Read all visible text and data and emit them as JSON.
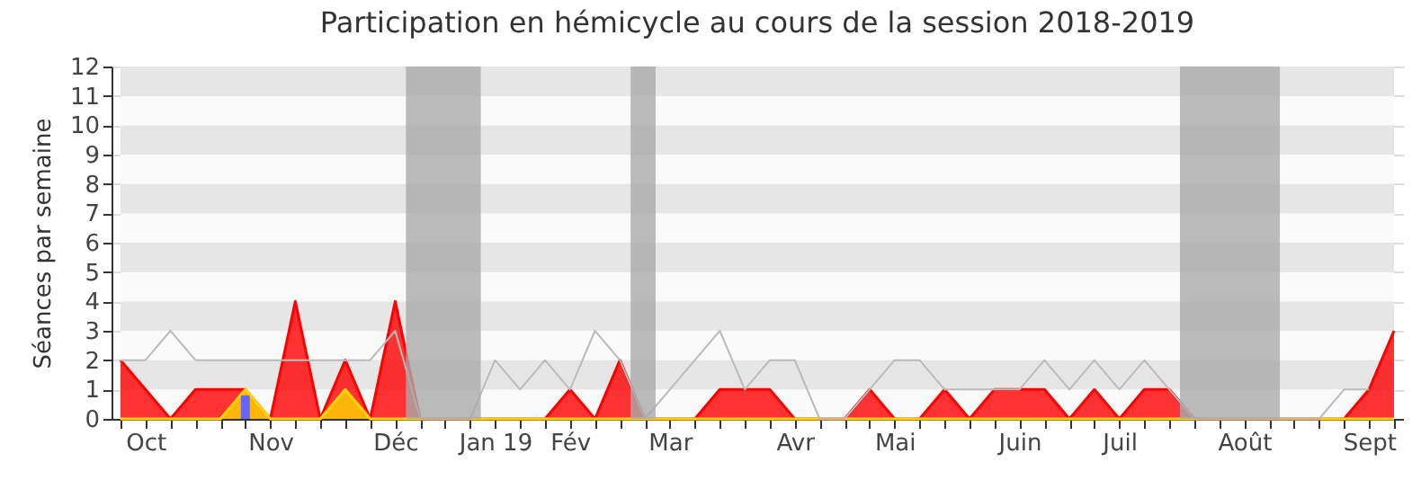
{
  "chart_data": {
    "type": "area",
    "title": "Participation en hémicycle au cours de la session 2018-2019",
    "ylabel": "Séances par semaine",
    "x": [
      "2018-09-30",
      "2018-10-07",
      "2018-10-14",
      "2018-10-21",
      "2018-10-28",
      "2018-11-04",
      "2018-11-11",
      "2018-11-18",
      "2018-11-25",
      "2018-12-02",
      "2018-12-09",
      "2018-12-16",
      "2018-12-23",
      "2018-12-30",
      "2019-01-06",
      "2019-01-13",
      "2019-01-20",
      "2019-01-27",
      "2019-02-03",
      "2019-02-10",
      "2019-02-17",
      "2019-02-24",
      "2019-03-03",
      "2019-03-10",
      "2019-03-17",
      "2019-03-24",
      "2019-03-31",
      "2019-04-07",
      "2019-04-14",
      "2019-04-21",
      "2019-04-28",
      "2019-05-05",
      "2019-05-12",
      "2019-05-19",
      "2019-05-26",
      "2019-06-02",
      "2019-06-09",
      "2019-06-16",
      "2019-06-23",
      "2019-06-30",
      "2019-07-07",
      "2019-07-14",
      "2019-07-21",
      "2019-07-28",
      "2019-08-04",
      "2019-08-11",
      "2019-08-18",
      "2019-08-25",
      "2019-09-01",
      "2019-09-08",
      "2019-09-15",
      "2019-09-22"
    ],
    "series": [
      {
        "color": "#ff0000",
        "values": [
          2,
          1,
          0,
          1,
          1,
          1,
          0,
          4,
          0,
          2,
          0,
          4,
          0,
          0,
          0,
          0,
          0,
          0,
          1,
          0,
          2,
          0,
          0,
          0,
          1,
          1,
          1,
          0,
          0,
          0,
          1,
          0,
          0,
          1,
          0,
          1,
          1,
          1,
          0,
          1,
          0,
          1,
          1,
          0,
          0,
          0,
          0,
          0,
          0,
          0,
          1,
          3
        ]
      },
      {
        "color": "#ffd700",
        "values": [
          0,
          0,
          0,
          0,
          0,
          1,
          0,
          0,
          0,
          1,
          0,
          0,
          0,
          0,
          0,
          0,
          0,
          0,
          0,
          0,
          0,
          0,
          0,
          0,
          0,
          0,
          0,
          0,
          0,
          0,
          0,
          0,
          0,
          0,
          0,
          0,
          0,
          0,
          0,
          0,
          0,
          0,
          0,
          0,
          0,
          0,
          0,
          0,
          0,
          0,
          0,
          0
        ]
      },
      {
        "type": "bar",
        "color": "#6666ff",
        "values": [
          null,
          null,
          null,
          null,
          null,
          0.8,
          null,
          null,
          null,
          null,
          null,
          null,
          null,
          null,
          null,
          null,
          null,
          null,
          null,
          null,
          null,
          null,
          null,
          null,
          null,
          null,
          null,
          null,
          null,
          null,
          null,
          null,
          null,
          null,
          null,
          null,
          null,
          null,
          null,
          null,
          null,
          null,
          null,
          null,
          null,
          null,
          null,
          null,
          null,
          null,
          null,
          null
        ]
      },
      {
        "type": "line",
        "color": "#bbbbbb",
        "values": [
          2,
          2,
          3,
          2,
          2,
          2,
          2,
          2,
          2,
          2,
          2,
          3,
          0,
          0,
          0,
          2,
          1,
          2,
          1,
          3,
          2,
          0,
          1,
          2,
          3,
          1,
          2,
          2,
          0,
          0,
          1,
          2,
          2,
          1,
          1,
          1,
          1,
          2,
          1,
          2,
          1,
          2,
          1,
          0,
          0,
          0,
          0,
          0,
          0,
          1,
          1,
          null
        ]
      }
    ],
    "xlim": [
      "2018-09-30",
      "2019-09-22"
    ],
    "xticks": [
      {
        "value": "2018-09-30",
        "label": null
      },
      {
        "value": "2018-10-07",
        "label": "Oct"
      },
      {
        "value": "2018-10-14",
        "label": null
      },
      {
        "value": "2018-10-21",
        "label": null
      },
      {
        "value": "2018-10-28",
        "label": null
      },
      {
        "value": "2018-11-04",
        "label": null
      },
      {
        "value": "2018-11-11",
        "label": "Nov"
      },
      {
        "value": "2018-11-18",
        "label": null
      },
      {
        "value": "2018-11-25",
        "label": null
      },
      {
        "value": "2018-12-02",
        "label": null
      },
      {
        "value": "2018-12-09",
        "label": null
      },
      {
        "value": "2018-12-16",
        "label": "Déc"
      },
      {
        "value": "2018-12-23",
        "label": null
      },
      {
        "value": "2018-12-30",
        "label": null
      },
      {
        "value": "2019-01-06",
        "label": null
      },
      {
        "value": "2019-01-13",
        "label": "Jan 19"
      },
      {
        "value": "2019-01-20",
        "label": null
      },
      {
        "value": "2019-01-27",
        "label": null
      },
      {
        "value": "2019-02-03",
        "label": "Fév"
      },
      {
        "value": "2019-02-10",
        "label": null
      },
      {
        "value": "2019-02-17",
        "label": null
      },
      {
        "value": "2019-02-24",
        "label": null
      },
      {
        "value": "2019-03-03",
        "label": "Mar"
      },
      {
        "value": "2019-03-10",
        "label": null
      },
      {
        "value": "2019-03-17",
        "label": null
      },
      {
        "value": "2019-03-24",
        "label": null
      },
      {
        "value": "2019-03-31",
        "label": null
      },
      {
        "value": "2019-04-07",
        "label": "Avr"
      },
      {
        "value": "2019-04-14",
        "label": null
      },
      {
        "value": "2019-04-21",
        "label": null
      },
      {
        "value": "2019-04-28",
        "label": null
      },
      {
        "value": "2019-05-05",
        "label": "Mai"
      },
      {
        "value": "2019-05-12",
        "label": null
      },
      {
        "value": "2019-05-19",
        "label": null
      },
      {
        "value": "2019-05-26",
        "label": null
      },
      {
        "value": "2019-06-02",
        "label": null
      },
      {
        "value": "2019-06-09",
        "label": "Juin"
      },
      {
        "value": "2019-06-16",
        "label": null
      },
      {
        "value": "2019-06-23",
        "label": null
      },
      {
        "value": "2019-06-30",
        "label": null
      },
      {
        "value": "2019-07-07",
        "label": "Juil"
      },
      {
        "value": "2019-07-14",
        "label": null
      },
      {
        "value": "2019-07-21",
        "label": null
      },
      {
        "value": "2019-07-28",
        "label": null
      },
      {
        "value": "2019-08-04",
        "label": null
      },
      {
        "value": "2019-08-11",
        "label": "Août"
      },
      {
        "value": "2019-08-18",
        "label": null
      },
      {
        "value": "2019-08-25",
        "label": null
      },
      {
        "value": "2019-09-01",
        "label": null
      },
      {
        "value": "2019-09-08",
        "label": null
      },
      {
        "value": "2019-09-15",
        "label": "Sept"
      },
      {
        "value": "2019-09-22",
        "label": null
      }
    ],
    "ylim": [
      0,
      12
    ],
    "yticks": [
      0,
      1,
      2,
      3,
      4,
      5,
      6,
      7,
      8,
      9,
      10,
      11,
      12
    ],
    "grid": "y",
    "bands": [
      {
        "axis": "x",
        "from": "2018-12-19",
        "to": "2019-01-09",
        "color": "#aaaaaa"
      },
      {
        "axis": "x",
        "from": "2019-02-20",
        "to": "2019-02-27",
        "color": "#aaaaaa"
      },
      {
        "axis": "x",
        "from": "2019-07-24",
        "to": "2019-08-21",
        "color": "#aaaaaa"
      }
    ]
  }
}
